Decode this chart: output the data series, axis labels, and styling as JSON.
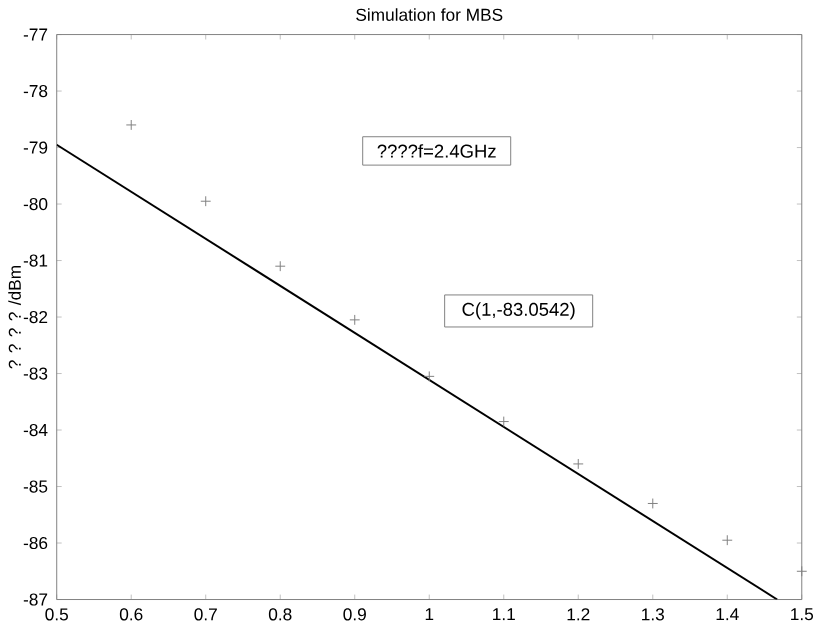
{
  "chart_data": {
    "type": "scatter",
    "title": "Simulation for MBS",
    "ylabel": "? ? ? ? /dBm",
    "series": [
      {
        "color": "#808080",
        "marker": "cross",
        "x": [
          0.6,
          0.7,
          0.8,
          0.9,
          1.0,
          1.1,
          1.2,
          1.3,
          1.4,
          1.5
        ],
        "values": [
          -78.6,
          -79.95,
          -81.1,
          -82.05,
          -83.05,
          -83.85,
          -84.6,
          -85.3,
          -85.95,
          -86.5
        ]
      },
      {
        "type": "line",
        "color": "#000000",
        "marker": "none",
        "x": [
          0.5,
          1.467
        ],
        "values": [
          -78.95,
          -87
        ]
      }
    ],
    "xlim": [
      0.5,
      1.5
    ],
    "xticks": [
      0.5,
      0.6,
      0.7,
      0.8,
      0.9,
      1,
      1.1,
      1.2,
      1.3,
      1.4,
      1.5
    ],
    "ylim": [
      -87,
      -77
    ],
    "yticks": [
      -87,
      -86,
      -85,
      -84,
      -83,
      -82,
      -81,
      -80,
      -79,
      -78,
      -77
    ],
    "annotations": [
      "????f=2.4GHz",
      "C(1,-83.0542)"
    ]
  }
}
